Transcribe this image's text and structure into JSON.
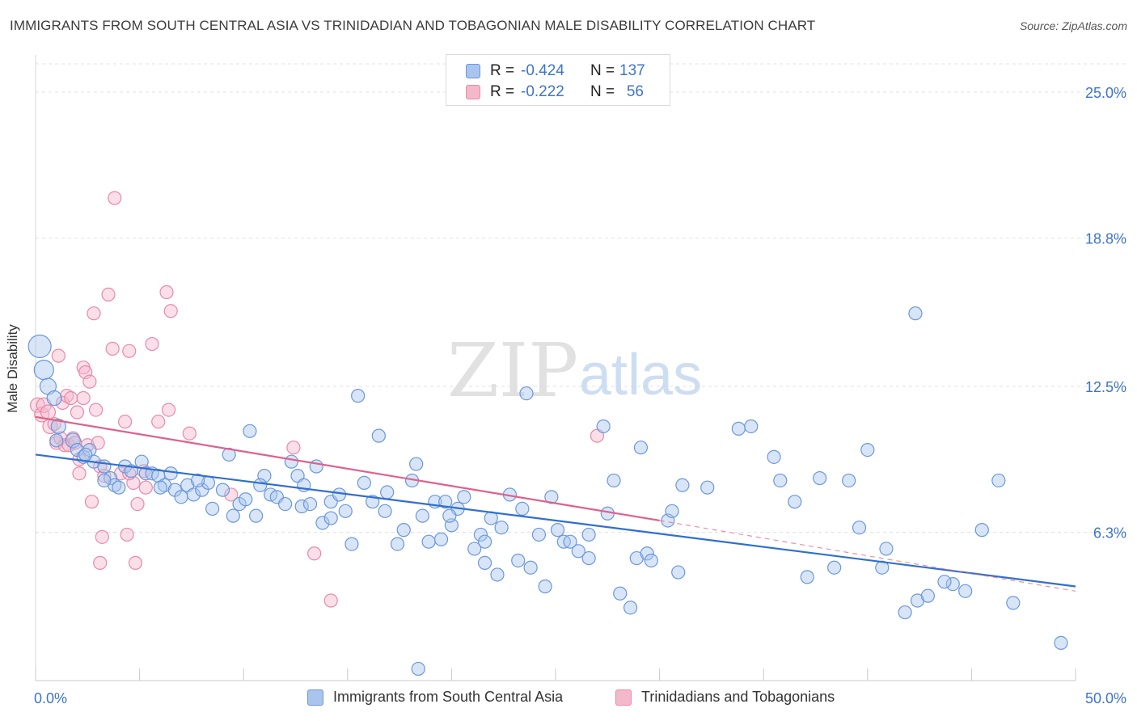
{
  "title": "IMMIGRANTS FROM SOUTH CENTRAL ASIA VS TRINIDADIAN AND TOBAGONIAN MALE DISABILITY CORRELATION CHART",
  "source": "Source: ZipAtlas.com",
  "watermark": {
    "zip": "ZIP",
    "atlas": "atlas"
  },
  "legend": {
    "rows": [
      {
        "r_label": "R =",
        "r_value": "-0.424",
        "n_label": "N =",
        "n_value": "137"
      },
      {
        "r_label": "R =",
        "r_value": "-0.222",
        "n_label": "N =",
        "n_value": "56"
      }
    ]
  },
  "colors": {
    "blue_fill": "#a9c5ee",
    "blue_stroke": "#6b97db",
    "blue_line": "#2f6fd0",
    "pink_fill": "#f4b8cb",
    "pink_stroke": "#e98aa8",
    "pink_line": "#e0608a",
    "axis_text": "#3d74c9",
    "grid": "#e2e2e2"
  },
  "chart_data": {
    "type": "scatter",
    "title": "IMMIGRANTS FROM SOUTH CENTRAL ASIA VS TRINIDADIAN AND TOBAGONIAN MALE DISABILITY CORRELATION CHART",
    "xlabel": "",
    "ylabel": "Male Disability",
    "xlim": [
      0,
      50
    ],
    "ylim": [
      0,
      26.2
    ],
    "x_tick_labels": [
      "0.0%",
      "50.0%"
    ],
    "y_ticks": [
      6.3,
      12.5,
      18.8,
      25.0
    ],
    "y_tick_labels": [
      "6.3%",
      "12.5%",
      "18.8%",
      "25.0%"
    ],
    "grid": true,
    "legend_position": "bottom",
    "series": [
      {
        "name": "Immigrants from South Central Asia",
        "color": "blue",
        "r": -0.424,
        "n": 137,
        "trend": {
          "x0": 0,
          "y0": 9.6,
          "x1": 50,
          "y1": 4.0
        },
        "points": [
          [
            0.2,
            14.2,
            14
          ],
          [
            0.4,
            13.2,
            12
          ],
          [
            0.6,
            12.5,
            10
          ],
          [
            0.9,
            12.0,
            9
          ],
          [
            1.1,
            10.8,
            9
          ],
          [
            1.0,
            10.2,
            8
          ],
          [
            1.8,
            10.2,
            9
          ],
          [
            2.0,
            9.8,
            8
          ],
          [
            2.3,
            9.5,
            8
          ],
          [
            2.6,
            9.8,
            8
          ],
          [
            2.8,
            9.3,
            8
          ],
          [
            3.3,
            9.1,
            8
          ],
          [
            3.6,
            8.6,
            8
          ],
          [
            3.8,
            8.3,
            8
          ],
          [
            4.0,
            8.2,
            8
          ],
          [
            4.3,
            9.1,
            8
          ],
          [
            4.6,
            8.9,
            8
          ],
          [
            5.1,
            9.3,
            8
          ],
          [
            5.3,
            8.8,
            8
          ],
          [
            5.6,
            8.8,
            8
          ],
          [
            5.9,
            8.7,
            8
          ],
          [
            6.2,
            8.3,
            8
          ],
          [
            6.5,
            8.8,
            8
          ],
          [
            6.7,
            8.1,
            8
          ],
          [
            7.0,
            7.8,
            8
          ],
          [
            7.3,
            8.3,
            8
          ],
          [
            7.6,
            7.9,
            8
          ],
          [
            8.0,
            8.1,
            8
          ],
          [
            8.3,
            8.4,
            8
          ],
          [
            8.5,
            7.3,
            8
          ],
          [
            9.0,
            8.1,
            8
          ],
          [
            9.3,
            9.6,
            8
          ],
          [
            9.5,
            7.0,
            8
          ],
          [
            9.8,
            7.5,
            8
          ],
          [
            10.1,
            7.7,
            8
          ],
          [
            10.3,
            10.6,
            8
          ],
          [
            10.6,
            7.0,
            8
          ],
          [
            11.0,
            8.7,
            8
          ],
          [
            11.3,
            7.9,
            8
          ],
          [
            11.6,
            7.8,
            8
          ],
          [
            12.0,
            7.5,
            8
          ],
          [
            12.3,
            9.3,
            8
          ],
          [
            12.6,
            8.7,
            8
          ],
          [
            12.8,
            7.4,
            8
          ],
          [
            13.2,
            7.5,
            8
          ],
          [
            13.5,
            9.1,
            8
          ],
          [
            13.8,
            6.7,
            8
          ],
          [
            14.2,
            7.6,
            8
          ],
          [
            14.6,
            7.9,
            8
          ],
          [
            14.9,
            7.2,
            8
          ],
          [
            15.2,
            5.8,
            8
          ],
          [
            15.5,
            12.1,
            8
          ],
          [
            15.8,
            8.4,
            8
          ],
          [
            16.2,
            7.6,
            8
          ],
          [
            16.5,
            10.4,
            8
          ],
          [
            16.8,
            7.2,
            8
          ],
          [
            17.4,
            5.8,
            8
          ],
          [
            17.7,
            6.4,
            8
          ],
          [
            18.1,
            8.5,
            8
          ],
          [
            18.3,
            9.2,
            8
          ],
          [
            18.6,
            7.0,
            8
          ],
          [
            18.9,
            5.9,
            8
          ],
          [
            19.2,
            7.6,
            8
          ],
          [
            19.5,
            6.0,
            8
          ],
          [
            19.7,
            7.6,
            8
          ],
          [
            20.0,
            6.6,
            8
          ],
          [
            20.3,
            7.3,
            8
          ],
          [
            20.6,
            7.8,
            8
          ],
          [
            21.1,
            5.6,
            8
          ],
          [
            21.4,
            6.2,
            8
          ],
          [
            21.6,
            5.9,
            8
          ],
          [
            21.9,
            6.9,
            8
          ],
          [
            22.2,
            4.5,
            8
          ],
          [
            22.4,
            6.5,
            8
          ],
          [
            22.8,
            7.9,
            8
          ],
          [
            23.2,
            5.1,
            8
          ],
          [
            23.6,
            12.2,
            8
          ],
          [
            23.8,
            4.8,
            8
          ],
          [
            24.2,
            6.2,
            8
          ],
          [
            24.5,
            4.0,
            8
          ],
          [
            24.8,
            7.8,
            8
          ],
          [
            25.1,
            6.4,
            8
          ],
          [
            25.4,
            5.9,
            8
          ],
          [
            25.7,
            5.9,
            8
          ],
          [
            26.1,
            5.5,
            8
          ],
          [
            26.6,
            6.2,
            8
          ],
          [
            27.3,
            10.8,
            8
          ],
          [
            27.5,
            7.1,
            8
          ],
          [
            27.8,
            8.5,
            8
          ],
          [
            28.1,
            3.7,
            8
          ],
          [
            28.6,
            3.1,
            8
          ],
          [
            28.9,
            5.2,
            8
          ],
          [
            29.1,
            9.9,
            8
          ],
          [
            29.4,
            5.4,
            8
          ],
          [
            29.6,
            5.1,
            8
          ],
          [
            30.4,
            6.8,
            8
          ],
          [
            30.6,
            7.2,
            8
          ],
          [
            30.9,
            4.6,
            8
          ],
          [
            32.3,
            8.2,
            8
          ],
          [
            33.8,
            10.7,
            8
          ],
          [
            34.4,
            10.8,
            8
          ],
          [
            35.5,
            9.5,
            8
          ],
          [
            35.8,
            8.5,
            8
          ],
          [
            37.1,
            4.4,
            8
          ],
          [
            37.7,
            8.6,
            8
          ],
          [
            38.4,
            4.8,
            8
          ],
          [
            39.1,
            8.5,
            8
          ],
          [
            40.0,
            9.8,
            8
          ],
          [
            40.7,
            4.8,
            8
          ],
          [
            40.9,
            5.6,
            8
          ],
          [
            42.3,
            15.6,
            8
          ],
          [
            41.8,
            2.9,
            8
          ],
          [
            42.4,
            3.4,
            8
          ],
          [
            42.9,
            3.6,
            8
          ],
          [
            44.1,
            4.1,
            8
          ],
          [
            43.7,
            4.2,
            8
          ],
          [
            44.7,
            3.8,
            8
          ],
          [
            45.5,
            6.4,
            8
          ],
          [
            46.3,
            8.5,
            8
          ],
          [
            47.0,
            3.3,
            8
          ],
          [
            49.3,
            1.6,
            8
          ],
          [
            18.4,
            0.5,
            8
          ],
          [
            3.3,
            8.5,
            8
          ],
          [
            2.4,
            9.6,
            8
          ],
          [
            6.0,
            8.2,
            8
          ],
          [
            7.8,
            8.5,
            8
          ],
          [
            10.8,
            8.3,
            8
          ],
          [
            12.9,
            8.3,
            8
          ],
          [
            14.2,
            6.9,
            8
          ],
          [
            16.9,
            8.0,
            8
          ],
          [
            19.9,
            7.0,
            8
          ],
          [
            21.6,
            5.0,
            8
          ],
          [
            23.4,
            7.3,
            8
          ],
          [
            26.6,
            5.2,
            8
          ],
          [
            31.1,
            8.3,
            8
          ],
          [
            36.5,
            7.6,
            8
          ],
          [
            39.6,
            6.5,
            8
          ]
        ]
      },
      {
        "name": "Trinidadians and Tobagonians",
        "color": "pink",
        "r": -0.222,
        "n": 56,
        "trend": {
          "x0": 0,
          "y0": 11.2,
          "x1": 30,
          "y1": 6.8,
          "dashed_to": {
            "x": 50,
            "y": 3.8
          }
        },
        "points": [
          [
            0.1,
            11.7,
            9
          ],
          [
            0.3,
            11.3,
            9
          ],
          [
            0.4,
            11.7,
            9
          ],
          [
            0.6,
            11.4,
            9
          ],
          [
            0.7,
            10.8,
            9
          ],
          [
            0.9,
            10.9,
            8
          ],
          [
            1.0,
            10.1,
            8
          ],
          [
            1.2,
            10.3,
            8
          ],
          [
            1.3,
            11.8,
            8
          ],
          [
            1.4,
            10.0,
            8
          ],
          [
            1.5,
            12.1,
            8
          ],
          [
            1.6,
            10.0,
            8
          ],
          [
            1.7,
            12.0,
            8
          ],
          [
            1.8,
            10.3,
            8
          ],
          [
            1.9,
            10.1,
            8
          ],
          [
            2.0,
            11.4,
            8
          ],
          [
            2.1,
            8.8,
            8
          ],
          [
            2.1,
            9.4,
            8
          ],
          [
            2.3,
            13.3,
            8
          ],
          [
            2.4,
            13.1,
            8
          ],
          [
            2.5,
            10.0,
            8
          ],
          [
            2.6,
            12.7,
            8
          ],
          [
            2.7,
            7.6,
            8
          ],
          [
            2.8,
            15.6,
            8
          ],
          [
            2.9,
            11.5,
            8
          ],
          [
            3.0,
            10.1,
            8
          ],
          [
            3.1,
            9.1,
            8
          ],
          [
            3.2,
            6.1,
            8
          ],
          [
            3.3,
            8.7,
            8
          ],
          [
            3.5,
            16.4,
            8
          ],
          [
            3.7,
            14.1,
            8
          ],
          [
            3.8,
            20.5,
            8
          ],
          [
            4.1,
            8.8,
            8
          ],
          [
            4.3,
            11.0,
            8
          ],
          [
            4.4,
            6.2,
            8
          ],
          [
            4.5,
            14.0,
            8
          ],
          [
            4.7,
            8.4,
            8
          ],
          [
            4.8,
            5.0,
            8
          ],
          [
            4.9,
            7.5,
            8
          ],
          [
            5.2,
            8.9,
            8
          ],
          [
            5.3,
            8.2,
            8
          ],
          [
            5.6,
            14.3,
            8
          ],
          [
            5.9,
            11.0,
            8
          ],
          [
            6.3,
            16.5,
            8
          ],
          [
            6.4,
            11.5,
            8
          ],
          [
            6.5,
            15.7,
            8
          ],
          [
            7.4,
            10.5,
            8
          ],
          [
            9.4,
            7.9,
            8
          ],
          [
            12.4,
            9.9,
            8
          ],
          [
            13.4,
            5.4,
            8
          ],
          [
            14.2,
            3.4,
            8
          ],
          [
            27.0,
            10.4,
            8
          ],
          [
            3.1,
            5.0,
            8
          ],
          [
            1.1,
            13.8,
            8
          ],
          [
            2.3,
            12.0,
            8
          ],
          [
            4.5,
            8.8,
            8
          ]
        ]
      }
    ]
  },
  "bottom_legend": [
    {
      "label": "Immigrants from South Central Asia"
    },
    {
      "label": "Trinidadians and Tobagonians"
    }
  ]
}
